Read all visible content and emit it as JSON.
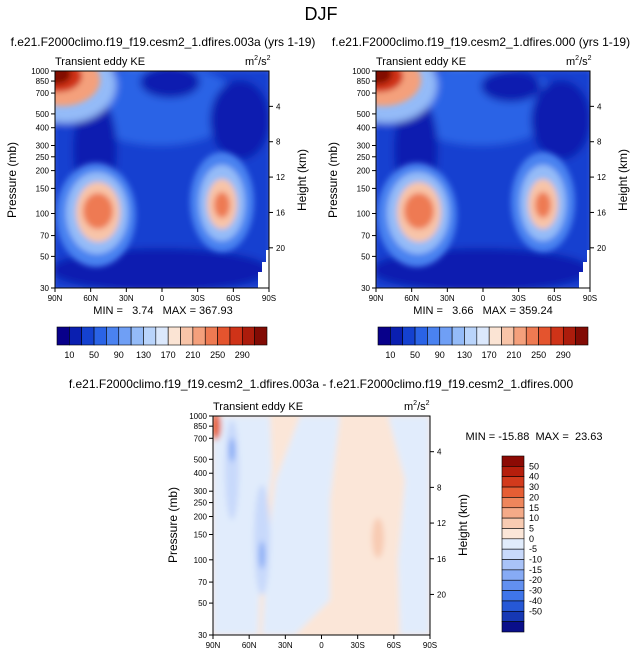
{
  "figure_title": "DJF",
  "colors": {
    "seq_palette": [
      "#08008a",
      "#0a1fb0",
      "#1441d0",
      "#2a63e6",
      "#4a82f0",
      "#6f9ff5",
      "#94bbf8",
      "#b9d4fb",
      "#dbe8fc",
      "#fbe4d4",
      "#f8c4a8",
      "#f4a07c",
      "#ee7a52",
      "#e4542e",
      "#cf3318",
      "#ac1c0c",
      "#820b04"
    ],
    "diff_palette": [
      "#0a0f8a",
      "#1638b4",
      "#2658d6",
      "#3f75ea",
      "#6290f0",
      "#87abf5",
      "#a9c3f8",
      "#c8d9fb",
      "#e1ecfc",
      "#fbe6d8",
      "#f8cbb2",
      "#f4aa88",
      "#ee865c",
      "#e65e34",
      "#d23a1c",
      "#b51e0c",
      "#8c0a04"
    ]
  },
  "chart_data": [
    {
      "type": "heatmap",
      "id": "case_a",
      "title": "f.e21.F2000climo.f19_f19.cesm2_1.dfires.003a (yrs 1-19)",
      "subtitle_left": "Transient eddy KE",
      "units_base": "m",
      "units_sup1": "2",
      "units_mid": "/s",
      "units_sup2": "2",
      "xlabel": "",
      "ylabel": "Pressure (mb)",
      "y2label": "Height (km)",
      "x_ticks": [
        "90N",
        "60N",
        "30N",
        "0",
        "30S",
        "60S",
        "90S"
      ],
      "x_range": [
        90,
        -90
      ],
      "y_range": [
        1000,
        30
      ],
      "y_scale": "log",
      "y_ticks": [
        30,
        50,
        70,
        100,
        150,
        200,
        250,
        300,
        400,
        500,
        700,
        850,
        1000
      ],
      "y2_ticks": [
        4,
        8,
        12,
        16,
        20
      ],
      "stats_text": "MIN =   3.74   MAX = 367.93",
      "min": 3.74,
      "max": 367.93,
      "colorbar_levels": [
        10,
        30,
        50,
        70,
        90,
        110,
        130,
        150,
        170,
        190,
        210,
        230,
        250,
        270,
        290
      ],
      "colorbar_labels": [
        "10",
        "50",
        "90",
        "130",
        "170",
        "210",
        "250",
        "290"
      ]
    },
    {
      "type": "heatmap",
      "id": "case_b",
      "title": "f.e21.F2000climo.f19_f19.cesm2_1.dfires.000 (yrs 1-19)",
      "subtitle_left": "Transient eddy KE",
      "units_base": "m",
      "units_sup1": "2",
      "units_mid": "/s",
      "units_sup2": "2",
      "xlabel": "",
      "ylabel": "Pressure (mb)",
      "y2label": "Height (km)",
      "x_ticks": [
        "90N",
        "60N",
        "30N",
        "0",
        "30S",
        "60S",
        "90S"
      ],
      "x_range": [
        90,
        -90
      ],
      "y_range": [
        1000,
        30
      ],
      "y_scale": "log",
      "y_ticks": [
        30,
        50,
        70,
        100,
        150,
        200,
        250,
        300,
        400,
        500,
        700,
        850,
        1000
      ],
      "y2_ticks": [
        4,
        8,
        12,
        16,
        20
      ],
      "stats_text": "MIN =   3.66   MAX = 359.24",
      "min": 3.66,
      "max": 359.24,
      "colorbar_levels": [
        10,
        30,
        50,
        70,
        90,
        110,
        130,
        150,
        170,
        190,
        210,
        230,
        250,
        270,
        290
      ],
      "colorbar_labels": [
        "10",
        "50",
        "90",
        "130",
        "170",
        "210",
        "250",
        "290"
      ]
    },
    {
      "type": "heatmap",
      "id": "diff",
      "title": "f.e21.F2000climo.f19_f19.cesm2_1.dfires.003a - f.e21.F2000climo.f19_f19.cesm2_1.dfires.000",
      "subtitle_left": "Transient eddy KE",
      "units_base": "m",
      "units_sup1": "2",
      "units_mid": "/s",
      "units_sup2": "2",
      "xlabel": "",
      "ylabel": "Pressure (mb)",
      "y2label": "Height (km)",
      "x_ticks": [
        "90N",
        "60N",
        "30N",
        "0",
        "30S",
        "60S",
        "90S"
      ],
      "x_range": [
        90,
        -90
      ],
      "y_range": [
        1000,
        30
      ],
      "y_scale": "log",
      "y_ticks": [
        30,
        50,
        70,
        100,
        150,
        200,
        250,
        300,
        400,
        500,
        700,
        850,
        1000
      ],
      "y2_ticks": [
        4,
        8,
        12,
        16,
        20
      ],
      "stats_text": "MIN = -15.88  MAX =  23.63",
      "min": -15.88,
      "max": 23.63,
      "colorbar_labels": [
        "50",
        "40",
        "30",
        "20",
        "15",
        "10",
        "5",
        "0",
        "-5",
        "-10",
        "-15",
        "-20",
        "-30",
        "-40",
        "-50"
      ]
    }
  ]
}
